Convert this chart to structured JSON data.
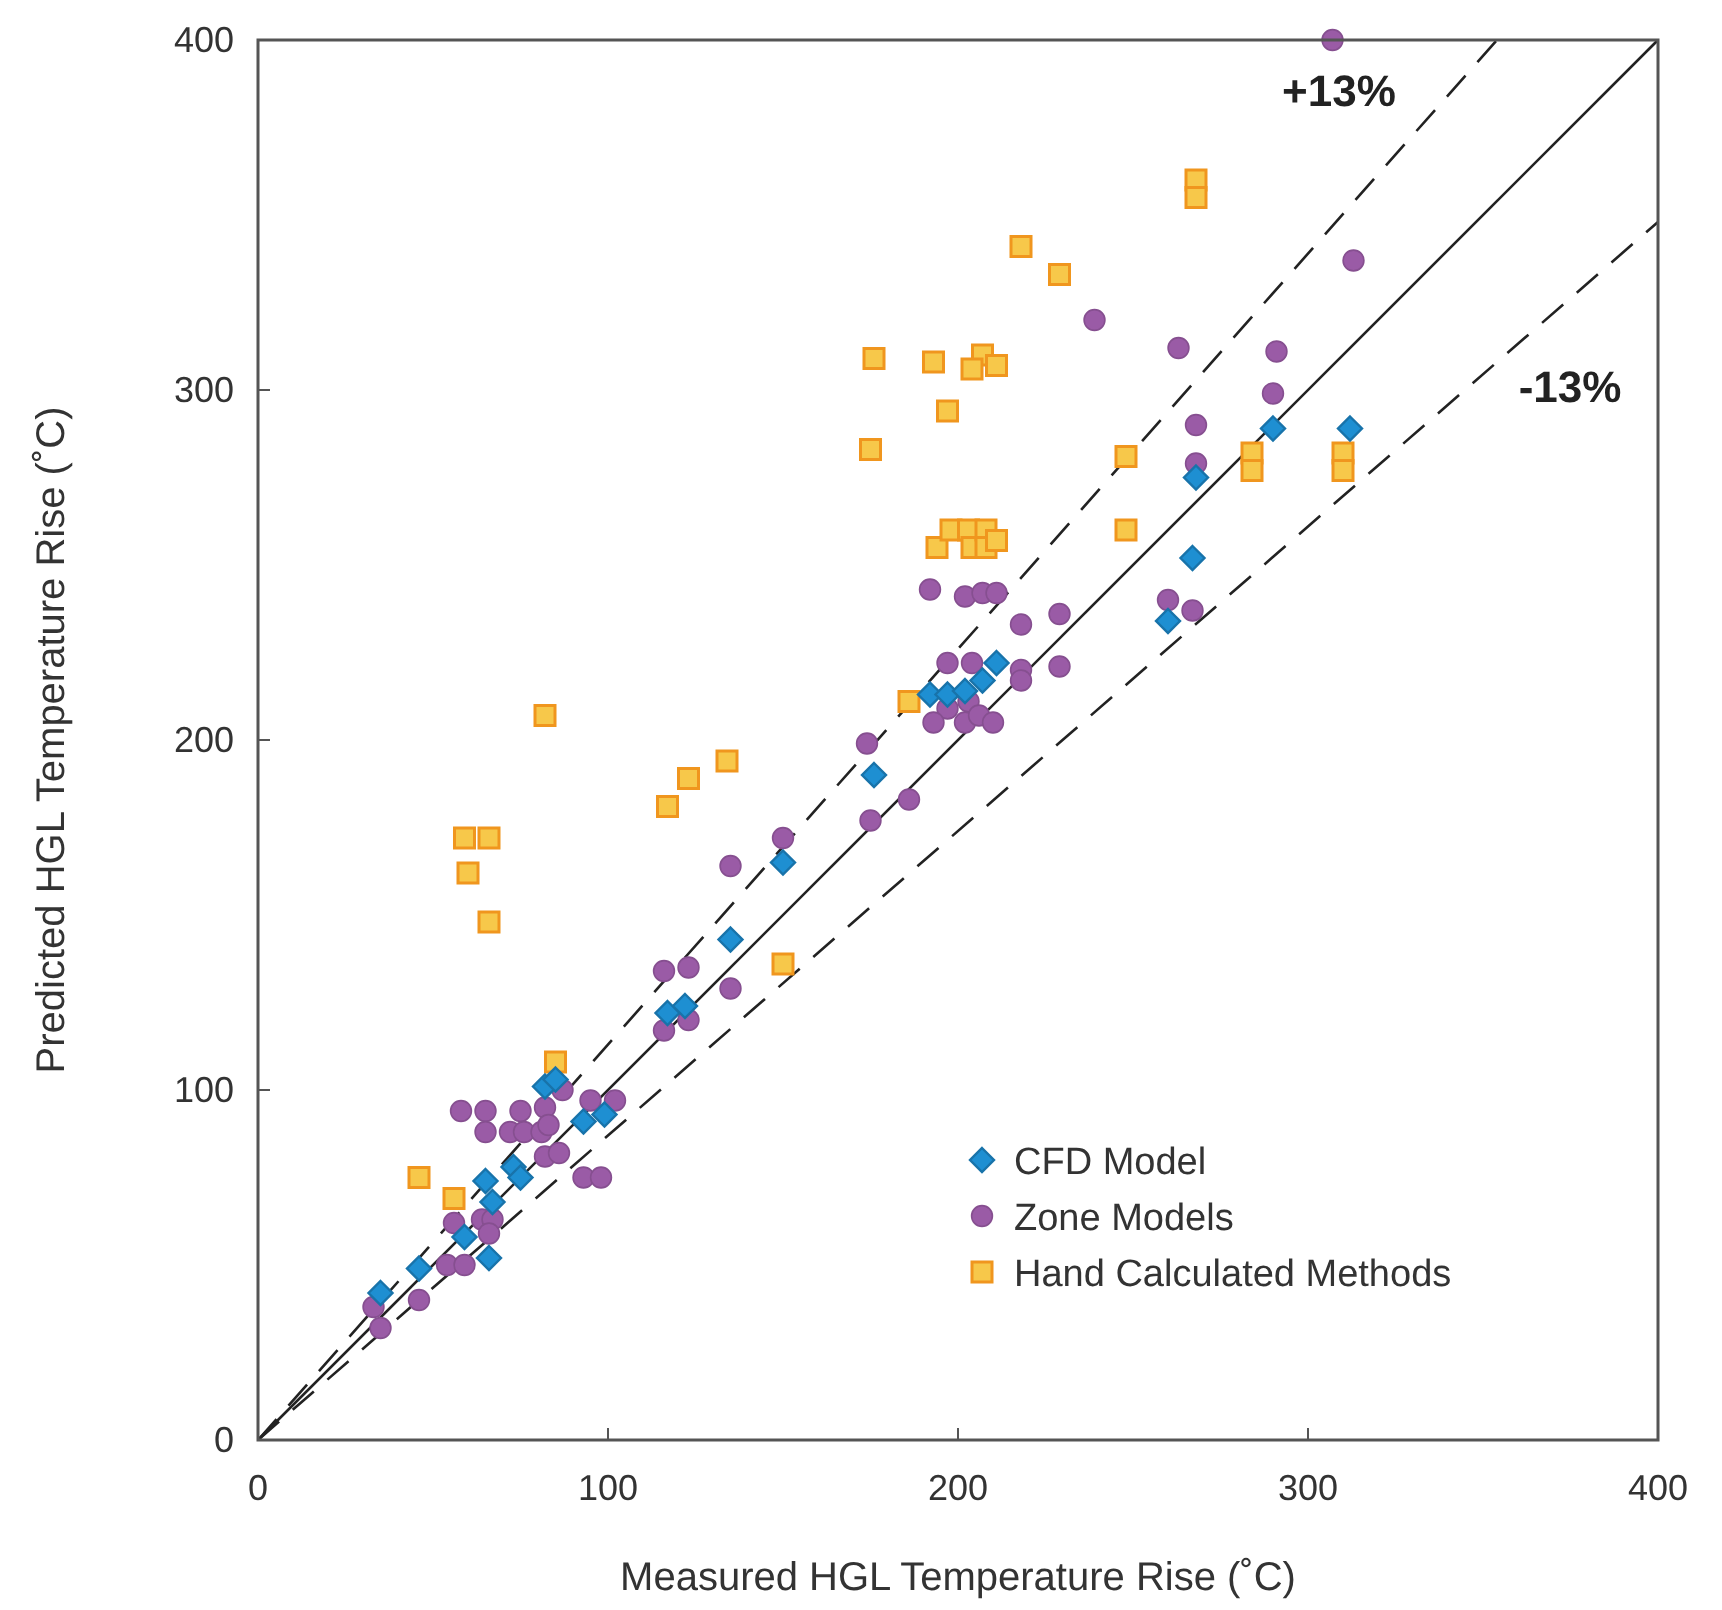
{
  "chart_data": {
    "type": "scatter",
    "xlabel": "Measured HGL Temperature Rise (˚C)",
    "ylabel": "Predicted HGL Temperature Rise (˚C)",
    "xlim": [
      0,
      400
    ],
    "ylim": [
      0,
      400
    ],
    "xticks": [
      0,
      100,
      200,
      300,
      400
    ],
    "yticks": [
      0,
      100,
      200,
      300,
      400
    ],
    "grid": false,
    "legend": "bottom right",
    "series": [
      {
        "name": "CFD Model",
        "color": "#1e8fd2",
        "marker": "diamond",
        "x": [
          35,
          46,
          59,
          66,
          65,
          67,
          73,
          75,
          82,
          85,
          93,
          99,
          117,
          122,
          135,
          150,
          176,
          192,
          197,
          202,
          207,
          211,
          260,
          267,
          268,
          290,
          312
        ],
        "values": [
          42,
          49,
          58,
          52,
          74,
          68,
          78,
          75,
          101,
          103,
          91,
          93,
          122,
          124,
          143,
          165,
          190,
          213,
          213,
          214,
          217,
          222,
          234,
          252,
          275,
          289,
          289
        ]
      },
      {
        "name": "Zone Models",
        "color": "#9a5ba6",
        "marker": "circle",
        "x": [
          33,
          35,
          46,
          58,
          65,
          65,
          72,
          75,
          76,
          81,
          82,
          83,
          82,
          86,
          87,
          95,
          102,
          93,
          98,
          56,
          64,
          67,
          66,
          54,
          59,
          116,
          123,
          116,
          123,
          135,
          150,
          135,
          174,
          186,
          175,
          192,
          202,
          207,
          211,
          218,
          229,
          197,
          204,
          218,
          218,
          229,
          197,
          203,
          193,
          202,
          206,
          210,
          260,
          267,
          239,
          263,
          291,
          290,
          268,
          268,
          313,
          307
        ],
        "values": [
          38,
          32,
          40,
          94,
          94,
          88,
          88,
          94,
          88,
          88,
          95,
          90,
          81,
          82,
          100,
          97,
          97,
          75,
          75,
          62,
          63,
          63,
          59,
          50,
          50,
          117,
          120,
          134,
          135,
          164,
          172,
          129,
          199,
          183,
          177,
          243,
          241,
          242,
          242,
          233,
          236,
          222,
          222,
          220,
          217,
          221,
          209,
          211,
          205,
          205,
          207,
          205,
          240,
          237,
          320,
          312,
          311,
          299,
          290,
          279,
          337,
          400
        ]
      },
      {
        "name": "Hand Calculated Methods",
        "color": "#f7c84a",
        "marker": "square",
        "x": [
          85,
          46,
          56,
          82,
          59,
          66,
          60,
          66,
          117,
          123,
          134,
          150,
          186,
          248,
          194,
          198,
          203,
          204,
          208,
          208,
          211,
          268,
          268,
          218,
          229,
          176,
          193,
          207,
          204,
          211,
          197,
          175,
          248,
          284,
          284,
          310,
          310
        ],
        "values": [
          108,
          75,
          69,
          207,
          172,
          172,
          162,
          148,
          181,
          189,
          194,
          136,
          211,
          260,
          255,
          260,
          260,
          255,
          260,
          255,
          257,
          360,
          355,
          341,
          333,
          309,
          308,
          310,
          306,
          307,
          294,
          283,
          281,
          282,
          277,
          282,
          277
        ]
      },
      {
        "type": "line",
        "color": "#222222",
        "line_style": "solid",
        "marker": "none",
        "x": [
          0,
          400
        ],
        "values": [
          0,
          400
        ]
      },
      {
        "type": "line",
        "color": "#222222",
        "line_style": "dashed",
        "marker": "none",
        "x": [
          0,
          354
        ],
        "values": [
          0,
          400
        ]
      },
      {
        "type": "line",
        "color": "#222222",
        "line_style": "dashed",
        "marker": "none",
        "x": [
          0,
          400
        ],
        "values": [
          0,
          348
        ]
      }
    ],
    "annotations": [
      "+13%",
      "-13%"
    ]
  }
}
